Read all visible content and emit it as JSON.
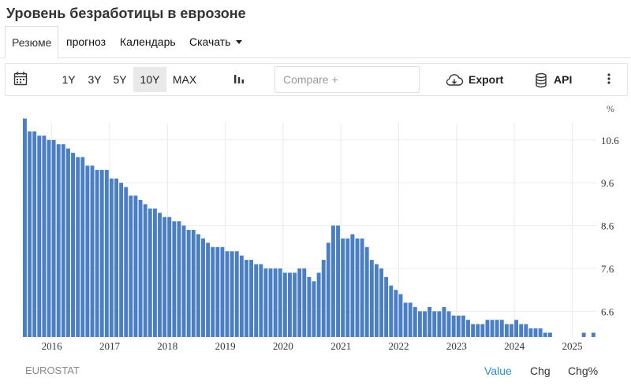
{
  "header": {
    "title": "Уровень безработицы в еврозоне"
  },
  "tabs": [
    {
      "label": "Резюме",
      "active": true
    },
    {
      "label": "прогноз"
    },
    {
      "label": "Календарь"
    },
    {
      "label": "Скачать"
    }
  ],
  "toolbar": {
    "calendar_icon": "calendar-icon",
    "ranges": [
      "1Y",
      "3Y",
      "5Y",
      "10Y",
      "MAX"
    ],
    "selected_range": "10Y",
    "chart_type_icon": "bar-chart-icon",
    "compare_placeholder": "Compare +",
    "export_label": "Export",
    "export_icon": "cloud-download-icon",
    "api_label": "API",
    "api_icon": "database-icon",
    "more_icon": "more-vertical-icon"
  },
  "footer": {
    "source": "EUROSTAT",
    "views": [
      "Value",
      "Chg",
      "Chg%"
    ],
    "active_view": "Value"
  },
  "chart_data": {
    "type": "bar",
    "unit_label": "%",
    "ylim": [
      6.0,
      11.0
    ],
    "yticks": [
      6.6,
      7.6,
      8.6,
      9.6,
      10.6
    ],
    "bar_color": "#4a7fc6",
    "x_year_labels": [
      "2016",
      "2017",
      "2018",
      "2019",
      "2020",
      "2021",
      "2022",
      "2023",
      "2024",
      "2025"
    ],
    "x_year_index": [
      6,
      18,
      30,
      42,
      54,
      66,
      78,
      90,
      102,
      114
    ],
    "start": "2015-07",
    "end": "2025-07",
    "values": [
      11.1,
      10.8,
      10.8,
      10.7,
      10.7,
      10.6,
      10.6,
      10.5,
      10.5,
      10.4,
      10.3,
      10.2,
      10.2,
      10.0,
      10.0,
      9.9,
      9.9,
      9.9,
      9.7,
      9.7,
      9.6,
      9.5,
      9.3,
      9.3,
      9.2,
      9.1,
      9.0,
      9.0,
      8.9,
      8.8,
      8.8,
      8.7,
      8.7,
      8.6,
      8.5,
      8.5,
      8.4,
      8.3,
      8.2,
      8.1,
      8.1,
      8.1,
      8.0,
      8.0,
      8.0,
      7.9,
      7.8,
      7.8,
      7.7,
      7.7,
      7.6,
      7.6,
      7.6,
      7.6,
      7.5,
      7.5,
      7.5,
      7.6,
      7.6,
      7.4,
      7.3,
      7.5,
      7.8,
      8.2,
      8.6,
      8.6,
      8.3,
      8.3,
      8.4,
      8.3,
      8.3,
      8.1,
      7.8,
      7.7,
      7.6,
      7.4,
      7.2,
      7.1,
      7.0,
      6.8,
      6.8,
      6.7,
      6.6,
      6.6,
      6.7,
      6.6,
      6.6,
      6.7,
      6.6,
      6.5,
      6.5,
      6.5,
      6.4,
      6.3,
      6.3,
      6.3,
      6.4,
      6.4,
      6.4,
      6.4,
      6.3,
      6.3,
      6.4,
      6.3,
      6.3,
      6.2,
      6.2,
      6.2,
      6.1,
      6.1,
      6.0,
      5.9,
      5.9,
      6.0,
      6.0,
      6.0,
      6.1,
      5.9,
      6.1
    ]
  }
}
